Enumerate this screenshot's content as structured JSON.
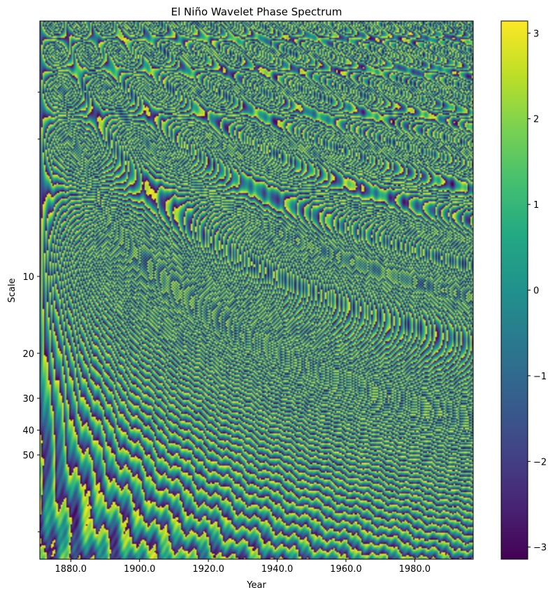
{
  "chart_data": {
    "type": "heatmap",
    "title": "El Niño Wavelet Phase Spectrum",
    "xlabel": "Year",
    "ylabel": "Scale",
    "xlim": [
      1871,
      1997
    ],
    "ylim_scale": [
      128,
      1
    ],
    "y_scale": "log (inverted: small scales at top)",
    "x_ticks": [
      1880,
      1900,
      1920,
      1940,
      1960,
      1980
    ],
    "x_tick_labels": [
      "1880.0",
      "1900.0",
      "1920.0",
      "1940.0",
      "1960.0",
      "1980.0"
    ],
    "y_ticks": [
      10,
      20,
      30,
      40,
      50
    ],
    "y_tick_labels": [
      "10",
      "20",
      "30",
      "40",
      "50"
    ],
    "colormap": "viridis",
    "value_range": [
      -3.14159,
      3.14159
    ],
    "colorbar_ticks": [
      3,
      2,
      1,
      0,
      -1,
      -2,
      -3
    ],
    "colorbar_tick_labels": [
      "3",
      "2",
      "1",
      "0",
      "−1",
      "−2",
      "−3"
    ],
    "grid": false,
    "description_of_values": "phase in radians; rapidly oscillating at small scales, broad bands splitting into branches at large scales"
  },
  "colors": {
    "viridis_low": "#440154",
    "viridis_mid": "#21918c",
    "viridis_high": "#fde725"
  }
}
